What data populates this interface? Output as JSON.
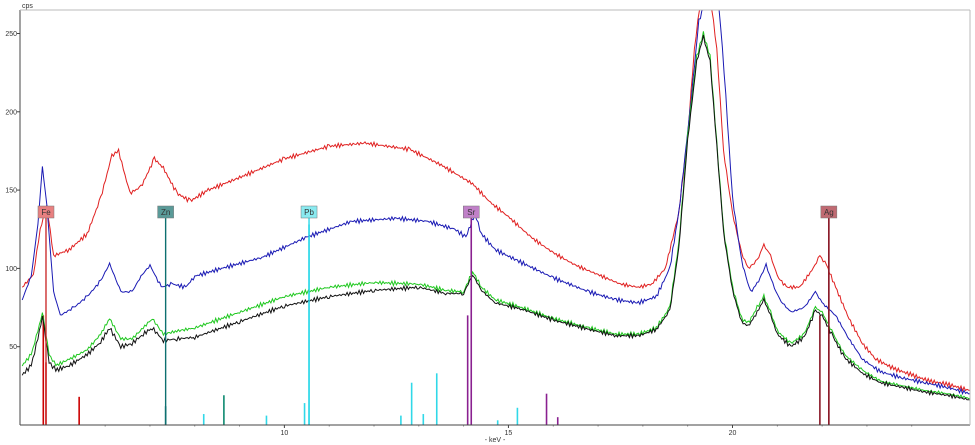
{
  "chart_data": {
    "type": "line",
    "title": "",
    "ylabel": "cps",
    "xlabel": "- keV -",
    "xlim": [
      4.1,
      25.3
    ],
    "ylim": [
      0,
      265
    ],
    "x_ticks": [
      {
        "value": 10,
        "label": "10"
      },
      {
        "value": 15,
        "label": "15"
      },
      {
        "value": 20,
        "label": "20"
      }
    ],
    "y_ticks": [
      {
        "value": 50,
        "label": "50"
      },
      {
        "value": 100,
        "label": "100"
      },
      {
        "value": 150,
        "label": "150"
      },
      {
        "value": 200,
        "label": "200"
      },
      {
        "value": 250,
        "label": "250"
      }
    ],
    "series": [
      {
        "color": "#e02020",
        "points": [
          [
            4.15,
            88
          ],
          [
            4.4,
            96
          ],
          [
            4.55,
            125
          ],
          [
            4.7,
            140
          ],
          [
            4.85,
            108
          ],
          [
            5.2,
            112
          ],
          [
            5.6,
            122
          ],
          [
            5.9,
            145
          ],
          [
            6.15,
            172
          ],
          [
            6.3,
            175
          ],
          [
            6.55,
            148
          ],
          [
            6.8,
            152
          ],
          [
            7.1,
            170
          ],
          [
            7.3,
            164
          ],
          [
            7.6,
            148
          ],
          [
            7.9,
            143
          ],
          [
            8.3,
            150
          ],
          [
            9,
            158
          ],
          [
            10,
            170
          ],
          [
            11,
            178
          ],
          [
            11.8,
            180
          ],
          [
            12.8,
            176
          ],
          [
            13.5,
            166
          ],
          [
            14.2,
            154
          ],
          [
            14.6,
            142
          ],
          [
            15,
            133
          ],
          [
            15.5,
            120
          ],
          [
            16,
            110
          ],
          [
            16.5,
            102
          ],
          [
            17,
            96
          ],
          [
            17.5,
            90
          ],
          [
            17.9,
            88
          ],
          [
            18.2,
            90
          ],
          [
            18.5,
            100
          ],
          [
            18.8,
            135
          ],
          [
            19,
            185
          ],
          [
            19.15,
            240
          ],
          [
            19.3,
            275
          ],
          [
            19.5,
            275
          ],
          [
            19.65,
            240
          ],
          [
            19.8,
            175
          ],
          [
            20,
            135
          ],
          [
            20.2,
            110
          ],
          [
            20.35,
            100
          ],
          [
            20.55,
            105
          ],
          [
            20.7,
            115
          ],
          [
            20.85,
            108
          ],
          [
            21,
            95
          ],
          [
            21.2,
            88
          ],
          [
            21.5,
            88
          ],
          [
            21.8,
            100
          ],
          [
            21.95,
            108
          ],
          [
            22.1,
            102
          ],
          [
            22.3,
            88
          ],
          [
            22.6,
            68
          ],
          [
            22.9,
            52
          ],
          [
            23.2,
            42
          ],
          [
            23.6,
            36
          ],
          [
            24,
            32
          ],
          [
            24.4,
            28
          ],
          [
            24.8,
            26
          ],
          [
            25.3,
            22
          ]
        ]
      },
      {
        "color": "#1a1ab4",
        "points": [
          [
            4.15,
            80
          ],
          [
            4.35,
            95
          ],
          [
            4.5,
            128
          ],
          [
            4.6,
            165
          ],
          [
            4.7,
            140
          ],
          [
            4.85,
            85
          ],
          [
            5,
            70
          ],
          [
            5.3,
            75
          ],
          [
            5.6,
            82
          ],
          [
            5.9,
            92
          ],
          [
            6.1,
            103
          ],
          [
            6.35,
            85
          ],
          [
            6.6,
            85
          ],
          [
            6.8,
            95
          ],
          [
            7,
            102
          ],
          [
            7.25,
            88
          ],
          [
            7.5,
            90
          ],
          [
            7.8,
            88
          ],
          [
            8,
            95
          ],
          [
            8.6,
            100
          ],
          [
            9.5,
            107
          ],
          [
            10.5,
            120
          ],
          [
            11.5,
            130
          ],
          [
            12.5,
            132
          ],
          [
            13.2,
            130
          ],
          [
            13.8,
            125
          ],
          [
            14.05,
            120
          ],
          [
            14.25,
            135
          ],
          [
            14.4,
            122
          ],
          [
            14.7,
            112
          ],
          [
            15.2,
            105
          ],
          [
            16,
            94
          ],
          [
            16.8,
            85
          ],
          [
            17.4,
            80
          ],
          [
            17.9,
            78
          ],
          [
            18.3,
            82
          ],
          [
            18.6,
            100
          ],
          [
            18.8,
            135
          ],
          [
            19.05,
            200
          ],
          [
            19.25,
            258
          ],
          [
            19.45,
            275
          ],
          [
            19.7,
            270
          ],
          [
            19.85,
            210
          ],
          [
            20,
            145
          ],
          [
            20.2,
            105
          ],
          [
            20.4,
            85
          ],
          [
            20.55,
            90
          ],
          [
            20.75,
            102
          ],
          [
            20.9,
            90
          ],
          [
            21.05,
            80
          ],
          [
            21.3,
            72
          ],
          [
            21.6,
            75
          ],
          [
            21.85,
            85
          ],
          [
            22,
            78
          ],
          [
            22.3,
            70
          ],
          [
            22.6,
            55
          ],
          [
            22.9,
            42
          ],
          [
            23.3,
            34
          ],
          [
            23.8,
            30
          ],
          [
            24.3,
            27
          ],
          [
            24.8,
            24
          ],
          [
            25.3,
            20
          ]
        ]
      },
      {
        "color": "#20c820",
        "points": [
          [
            4.15,
            38
          ],
          [
            4.35,
            45
          ],
          [
            4.5,
            60
          ],
          [
            4.6,
            72
          ],
          [
            4.75,
            45
          ],
          [
            4.9,
            38
          ],
          [
            5.2,
            42
          ],
          [
            5.6,
            48
          ],
          [
            5.9,
            58
          ],
          [
            6.1,
            68
          ],
          [
            6.35,
            55
          ],
          [
            6.6,
            55
          ],
          [
            6.85,
            62
          ],
          [
            7.05,
            68
          ],
          [
            7.3,
            58
          ],
          [
            7.6,
            60
          ],
          [
            8,
            62
          ],
          [
            9,
            72
          ],
          [
            10,
            82
          ],
          [
            11,
            88
          ],
          [
            12,
            91
          ],
          [
            13,
            90
          ],
          [
            13.6,
            86
          ],
          [
            14,
            85
          ],
          [
            14.2,
            98
          ],
          [
            14.4,
            88
          ],
          [
            14.7,
            80
          ],
          [
            15.3,
            75
          ],
          [
            16,
            68
          ],
          [
            16.8,
            62
          ],
          [
            17.4,
            58
          ],
          [
            17.9,
            58
          ],
          [
            18.3,
            62
          ],
          [
            18.6,
            75
          ],
          [
            18.8,
            115
          ],
          [
            19,
            185
          ],
          [
            19.2,
            235
          ],
          [
            19.35,
            250
          ],
          [
            19.5,
            235
          ],
          [
            19.65,
            180
          ],
          [
            19.8,
            125
          ],
          [
            20,
            88
          ],
          [
            20.2,
            68
          ],
          [
            20.35,
            65
          ],
          [
            20.55,
            75
          ],
          [
            20.7,
            82
          ],
          [
            20.85,
            72
          ],
          [
            21,
            60
          ],
          [
            21.3,
            52
          ],
          [
            21.6,
            58
          ],
          [
            21.85,
            75
          ],
          [
            22,
            72
          ],
          [
            22.25,
            58
          ],
          [
            22.5,
            45
          ],
          [
            22.9,
            35
          ],
          [
            23.3,
            28
          ],
          [
            23.8,
            25
          ],
          [
            24.3,
            22
          ],
          [
            24.8,
            20
          ],
          [
            25.3,
            17
          ]
        ]
      },
      {
        "color": "#111111",
        "points": [
          [
            4.15,
            32
          ],
          [
            4.35,
            38
          ],
          [
            4.5,
            55
          ],
          [
            4.6,
            70
          ],
          [
            4.75,
            40
          ],
          [
            4.9,
            35
          ],
          [
            5.2,
            38
          ],
          [
            5.6,
            45
          ],
          [
            5.9,
            53
          ],
          [
            6.1,
            62
          ],
          [
            6.35,
            50
          ],
          [
            6.6,
            52
          ],
          [
            6.85,
            58
          ],
          [
            7.05,
            62
          ],
          [
            7.3,
            54
          ],
          [
            7.6,
            55
          ],
          [
            8,
            56
          ],
          [
            9,
            66
          ],
          [
            10,
            76
          ],
          [
            11,
            82
          ],
          [
            12,
            86
          ],
          [
            13,
            88
          ],
          [
            13.6,
            84
          ],
          [
            14,
            84
          ],
          [
            14.2,
            96
          ],
          [
            14.4,
            86
          ],
          [
            14.7,
            78
          ],
          [
            15.3,
            74
          ],
          [
            16,
            67
          ],
          [
            16.8,
            61
          ],
          [
            17.4,
            57
          ],
          [
            17.9,
            57
          ],
          [
            18.3,
            61
          ],
          [
            18.6,
            73
          ],
          [
            18.8,
            112
          ],
          [
            19,
            182
          ],
          [
            19.2,
            232
          ],
          [
            19.35,
            248
          ],
          [
            19.5,
            232
          ],
          [
            19.65,
            178
          ],
          [
            19.8,
            123
          ],
          [
            20,
            86
          ],
          [
            20.2,
            66
          ],
          [
            20.35,
            63
          ],
          [
            20.55,
            72
          ],
          [
            20.7,
            80
          ],
          [
            20.85,
            70
          ],
          [
            21,
            58
          ],
          [
            21.3,
            50
          ],
          [
            21.6,
            56
          ],
          [
            21.85,
            73
          ],
          [
            22,
            70
          ],
          [
            22.25,
            56
          ],
          [
            22.5,
            43
          ],
          [
            22.9,
            33
          ],
          [
            23.3,
            27
          ],
          [
            23.8,
            24
          ],
          [
            24.3,
            21
          ],
          [
            24.8,
            19
          ],
          [
            25.3,
            16
          ]
        ]
      }
    ],
    "element_markers": [
      {
        "label": "Fe",
        "x": 4.68,
        "color": "#cc3030",
        "box_color": "#e88080"
      },
      {
        "label": "Zn",
        "x": 7.35,
        "color": "#0d7070",
        "box_color": "#5a9a98"
      },
      {
        "label": "Pb",
        "x": 10.55,
        "color": "#30d8e8",
        "box_color": "#8aeaf0"
      },
      {
        "label": "Sr",
        "x": 14.17,
        "color": "#8a2090",
        "box_color": "#c080c8"
      },
      {
        "label": "Ag",
        "x": 22.15,
        "color": "#8a1a28",
        "box_color": "#c06a72"
      }
    ],
    "emission_lines": [
      {
        "x": 4.62,
        "h": 70,
        "color": "#cc0000"
      },
      {
        "x": 4.68,
        "h": 40,
        "color": "#cc0000"
      },
      {
        "x": 5.42,
        "h": 18,
        "color": "#cc0000"
      },
      {
        "x": 7.35,
        "h": 12,
        "color": "#0d7070"
      },
      {
        "x": 8.2,
        "h": 7,
        "color": "#30d8e8"
      },
      {
        "x": 8.65,
        "h": 19,
        "color": "#0d8a70"
      },
      {
        "x": 9.6,
        "h": 6,
        "color": "#30d8e8"
      },
      {
        "x": 10.45,
        "h": 14,
        "color": "#30d8e8"
      },
      {
        "x": 10.55,
        "h": 128,
        "color": "#30d8e8"
      },
      {
        "x": 12.6,
        "h": 6,
        "color": "#30d8e8"
      },
      {
        "x": 12.84,
        "h": 27,
        "color": "#30d8e8"
      },
      {
        "x": 13.1,
        "h": 7,
        "color": "#30d8e8"
      },
      {
        "x": 13.4,
        "h": 33,
        "color": "#30d8e8"
      },
      {
        "x": 14.09,
        "h": 70,
        "color": "#8a2090"
      },
      {
        "x": 14.17,
        "h": 134,
        "color": "#8a2090"
      },
      {
        "x": 14.76,
        "h": 3,
        "color": "#30d8e8"
      },
      {
        "x": 15.2,
        "h": 11,
        "color": "#30d8e8"
      },
      {
        "x": 15.85,
        "h": 20,
        "color": "#8a2090"
      },
      {
        "x": 16.1,
        "h": 5,
        "color": "#8a2090"
      },
      {
        "x": 21.95,
        "h": 70,
        "color": "#8a1a28"
      },
      {
        "x": 22.15,
        "h": 133,
        "color": "#8a1a28"
      }
    ]
  }
}
